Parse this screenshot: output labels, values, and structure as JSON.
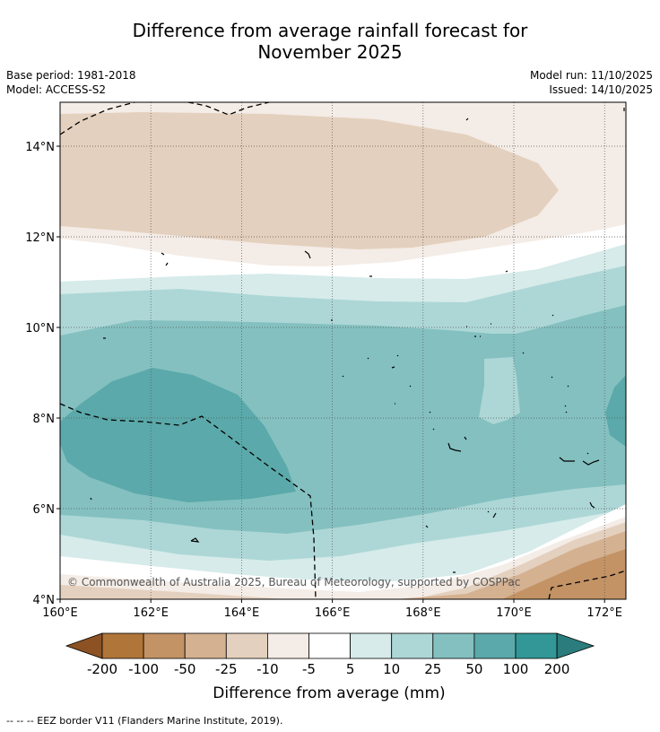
{
  "title": {
    "line1": "Difference from average rainfall forecast for",
    "line2": "November 2025"
  },
  "meta": {
    "base_period": "Base period: 1981-2018",
    "model": "Model: ACCESS-S2",
    "model_run": "Model run: 11/10/2025",
    "issued": "Issued: 14/10/2025"
  },
  "map": {
    "lon_ticks": [
      "160°E",
      "162°E",
      "164°E",
      "166°E",
      "168°E",
      "170°E",
      "172°E"
    ],
    "lat_ticks": [
      "14°N",
      "12°N",
      "10°N",
      "8°N",
      "6°N",
      "4°N"
    ],
    "copyright": "© Commonwealth of Australia 2025, Bureau of Meteorology, supported by COSPPac"
  },
  "colorbar": {
    "title": "Difference from average (mm)",
    "labels": [
      "-200",
      "-100",
      "-50",
      "-25",
      "-10",
      "-5",
      "5",
      "10",
      "25",
      "50",
      "100",
      "200"
    ],
    "colors": [
      "#8c5223",
      "#b07539",
      "#c39365",
      "#d4b191",
      "#e4d0be",
      "#f4ece6",
      "#ffffff",
      "#d6ebea",
      "#add7d6",
      "#84c0c0",
      "#5ba9aa",
      "#339797",
      "#2b7c7c"
    ]
  },
  "footer": {
    "legend": "--  --  -- EEZ border V11 (Flanders Marine Institute, 2019)."
  }
}
